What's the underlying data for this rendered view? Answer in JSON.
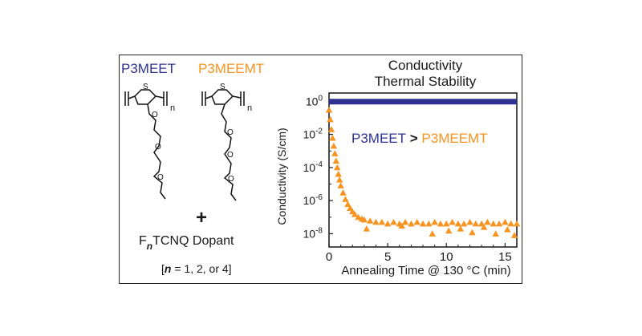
{
  "left_panel": {
    "polymer_1": "P3MEET",
    "polymer_2": "P3MEEMT",
    "plus_sign": "+",
    "dopant_prefix": "F",
    "dopant_subscript": "n",
    "dopant_suffix": "TCNQ Dopant",
    "n_values": {
      "open": "[",
      "var": "n",
      "rest": " = 1, 2, or 4]"
    },
    "structure_labels": {
      "sulfur": "S",
      "repeat": "n",
      "oxygen": "O"
    }
  },
  "colors": {
    "p3meet": "#2e3192",
    "p3meemt": "#f7931e",
    "text": "#1a1a1a"
  },
  "chart_data": {
    "type": "scatter",
    "title_line1": "Conductivity",
    "title_line2": "Thermal Stability",
    "xlabel": "Annealing Time @ 130 °C (min)",
    "ylabel": "Conductivity (S/cm)",
    "xlim": [
      0,
      16
    ],
    "ylim_log10": [
      -8.8,
      0.5
    ],
    "y_scale": "log",
    "x_ticks": [
      0,
      5,
      10,
      15
    ],
    "x_tick_labels": [
      "0",
      "5",
      "10",
      "15"
    ],
    "y_ticks_log10": [
      0,
      -2,
      -4,
      -6,
      -8
    ],
    "y_tick_base": "10",
    "y_tick_exponents": [
      "0",
      "-2",
      "-4",
      "-6",
      "-8"
    ],
    "annotation": {
      "left": "P3MEET",
      "op": ">",
      "right": "P3MEEMT"
    },
    "series": [
      {
        "name": "P3MEET",
        "marker": "line",
        "x": [
          0,
          16
        ],
        "y": [
          1.2,
          1.2
        ]
      },
      {
        "name": "P3MEEMT",
        "marker": "triangle",
        "x": [
          0,
          0.1,
          0.2,
          0.3,
          0.4,
          0.5,
          0.6,
          0.7,
          0.8,
          0.9,
          1.0,
          1.2,
          1.4,
          1.6,
          1.8,
          2.0,
          2.2,
          2.5,
          2.8,
          3.0,
          3.5,
          4.0,
          4.5,
          5.0,
          5.5,
          6.0,
          6.5,
          7.0,
          7.5,
          8.0,
          8.5,
          9.0,
          9.5,
          10.0,
          10.5,
          11.0,
          11.5,
          12.0,
          12.5,
          13.0,
          13.5,
          14.0,
          14.5,
          15.0,
          15.5,
          16.0,
          3.2,
          6.2,
          8.8,
          10.2,
          11.2,
          12.2,
          13.2,
          14.2,
          15.2,
          15.8
        ],
        "y": [
          0.3,
          0.08,
          0.02,
          0.006,
          0.002,
          0.0007,
          0.00025,
          0.0001,
          4e-05,
          1.8e-05,
          8e-06,
          3e-06,
          1.2e-06,
          6e-07,
          3.5e-07,
          2.2e-07,
          1.5e-07,
          1e-07,
          8e-08,
          7e-08,
          6e-08,
          5e-08,
          5e-08,
          4e-08,
          5e-08,
          4e-08,
          5e-08,
          4e-08,
          5e-08,
          4e-08,
          4e-08,
          5e-08,
          4e-08,
          4e-08,
          5e-08,
          4e-08,
          4e-08,
          5e-08,
          4e-08,
          4e-08,
          5e-08,
          4e-08,
          4e-08,
          5e-08,
          4e-08,
          4e-08,
          2e-08,
          3e-08,
          1e-08,
          1.5e-08,
          2e-08,
          1.2e-08,
          2.5e-08,
          1e-08,
          1.8e-08,
          8e-09
        ]
      }
    ]
  }
}
